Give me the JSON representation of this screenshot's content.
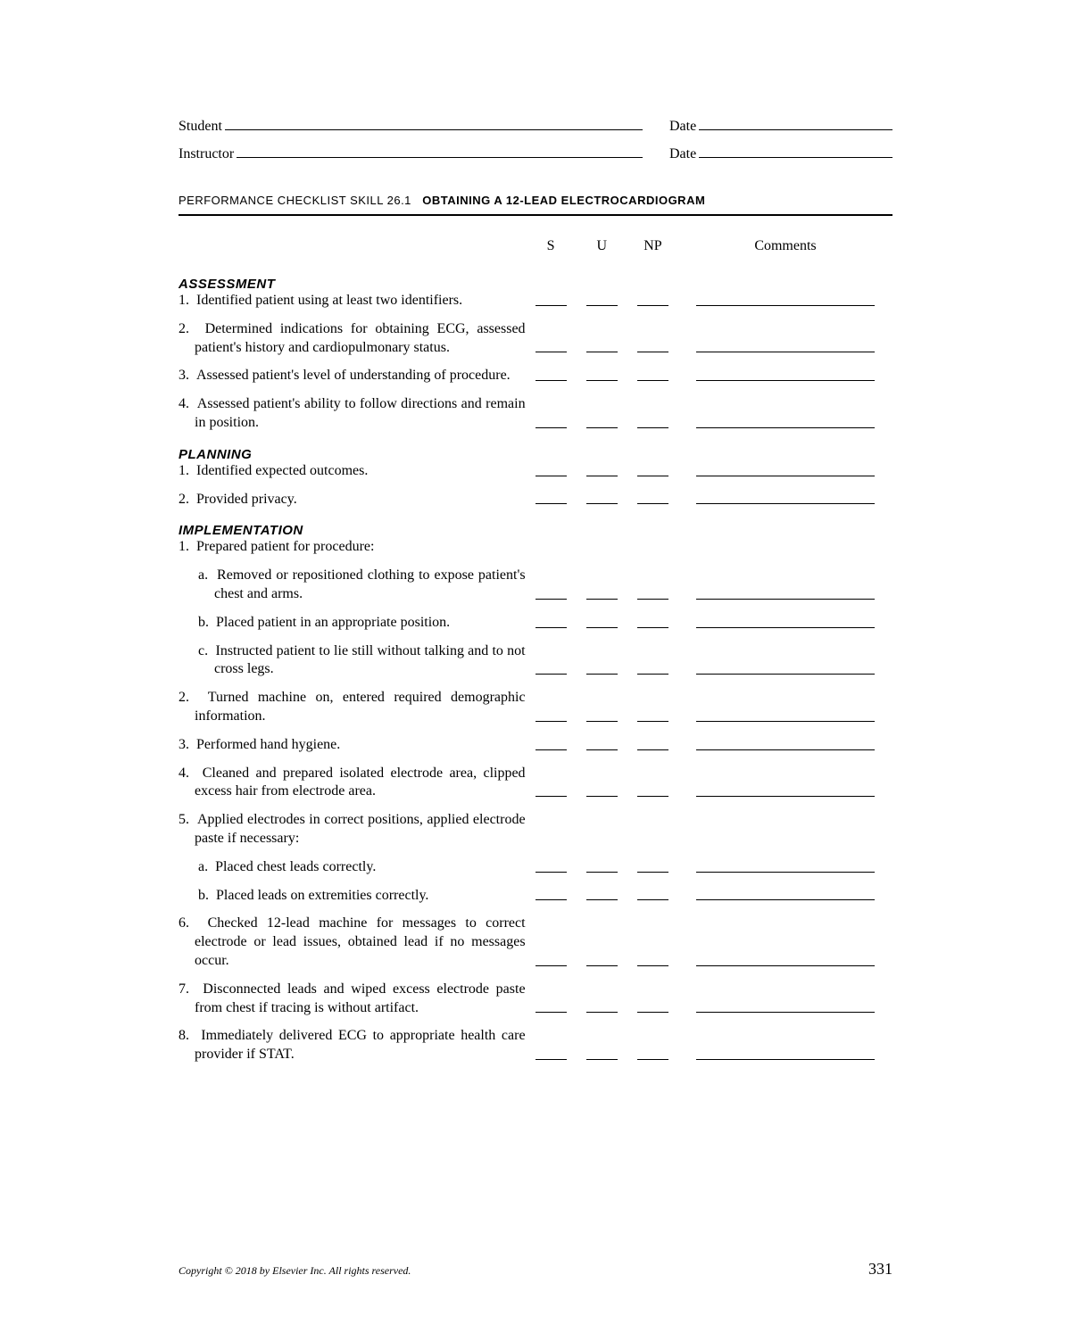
{
  "header": {
    "student_label": "Student",
    "instructor_label": "Instructor",
    "date_label": "Date"
  },
  "title": {
    "prefix": "PERFORMANCE CHECKLIST SKILL 26.1",
    "main": "OBTAINING A 12-LEAD ELECTROCARDIOGRAM"
  },
  "columns": {
    "s": "S",
    "u": "U",
    "np": "NP",
    "comments": "Comments"
  },
  "sections": [
    {
      "heading": "ASSESSMENT",
      "items": [
        {
          "num": "1.",
          "text": "Identified patient using at least two identifiers.",
          "blanks": true
        },
        {
          "num": "2.",
          "text": "Determined indications for obtaining ECG, assessed patient's history and cardiopulmonary status.",
          "blanks": true
        },
        {
          "num": "3.",
          "text": "Assessed patient's level of understanding of procedure.",
          "blanks": true
        },
        {
          "num": "4.",
          "text": "Assessed patient's ability to follow directions and remain in position.",
          "blanks": true
        }
      ]
    },
    {
      "heading": "PLANNING",
      "items": [
        {
          "num": "1.",
          "text": "Identified expected outcomes.",
          "blanks": true
        },
        {
          "num": "2.",
          "text": "Provided privacy.",
          "blanks": true
        }
      ]
    },
    {
      "heading": "IMPLEMENTATION",
      "items": [
        {
          "num": "1.",
          "text": "Prepared patient for procedure:",
          "blanks": false
        },
        {
          "num": "a.",
          "text": "Removed or repositioned clothing to expose patient's chest and arms.",
          "blanks": true,
          "sub": true
        },
        {
          "num": "b.",
          "text": "Placed patient in an appropriate position.",
          "blanks": true,
          "sub": true
        },
        {
          "num": "c.",
          "text": "Instructed patient to lie still without talking and to not cross legs.",
          "blanks": true,
          "sub": true
        },
        {
          "num": "2.",
          "text": "Turned machine on, entered required demographic information.",
          "blanks": true
        },
        {
          "num": "3.",
          "text": "Performed hand hygiene.",
          "blanks": true
        },
        {
          "num": "4.",
          "text": "Cleaned and prepared isolated electrode area, clipped excess hair from electrode area.",
          "blanks": true
        },
        {
          "num": "5.",
          "text": "Applied electrodes in correct positions, applied electrode paste if necessary:",
          "blanks": false
        },
        {
          "num": "a.",
          "text": "Placed chest leads correctly.",
          "blanks": true,
          "sub": true
        },
        {
          "num": "b.",
          "text": "Placed leads on extremities correctly.",
          "blanks": true,
          "sub": true
        },
        {
          "num": "6.",
          "text": "Checked 12-lead machine for messages to correct electrode or lead issues, obtained lead if no messages occur.",
          "blanks": true
        },
        {
          "num": "7.",
          "text": "Disconnected leads and wiped excess electrode paste from chest if tracing is without artifact.",
          "blanks": true
        },
        {
          "num": "8.",
          "text": "Immediately delivered ECG to appropriate health care provider if STAT.",
          "blanks": true
        }
      ]
    }
  ],
  "footer": {
    "copyright": "Copyright © 2018 by Elsevier Inc. All rights reserved.",
    "page": "331"
  }
}
